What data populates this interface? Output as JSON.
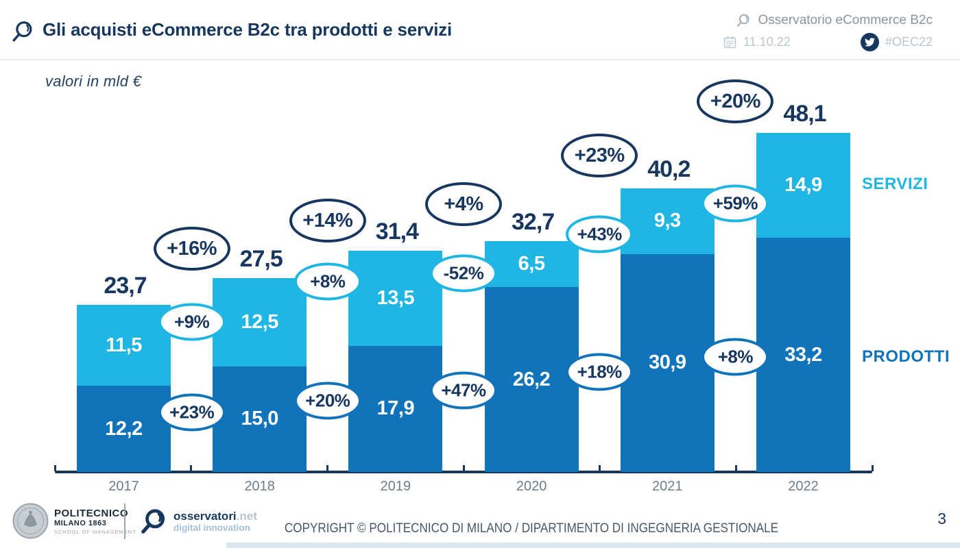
{
  "header": {
    "title": "Gli acquisti eCommerce B2c tra prodotti e servizi",
    "program": "Osservatorio eCommerce B2c",
    "date": "11.10.22",
    "hashtag": "#OEC22"
  },
  "chart_data": {
    "type": "bar",
    "stacked": true,
    "title": "Gli acquisti eCommerce B2c tra prodotti e servizi",
    "unit_note": "valori in mld €",
    "categories": [
      "2017",
      "2018",
      "2019",
      "2020",
      "2021",
      "2022"
    ],
    "series": [
      {
        "name": "PRODOTTI",
        "color": "#1173b9",
        "values": [
          12.2,
          15.0,
          17.9,
          26.2,
          30.9,
          33.2
        ],
        "value_labels": [
          "12,2",
          "15,0",
          "17,9",
          "26,2",
          "30,9",
          "33,2"
        ],
        "growth_labels": [
          "+23%",
          "+20%",
          "+47%",
          "+18%",
          "+8%"
        ]
      },
      {
        "name": "SERVIZI",
        "color": "#1fb6e4",
        "values": [
          11.5,
          12.5,
          13.5,
          6.5,
          9.3,
          14.9
        ],
        "value_labels": [
          "11,5",
          "12,5",
          "13,5",
          "6,5",
          "9,3",
          "14,9"
        ],
        "growth_labels": [
          "+9%",
          "+8%",
          "-52%",
          "+43%",
          "+59%"
        ]
      }
    ],
    "totals": [
      23.7,
      27.5,
      31.4,
      32.7,
      40.2,
      48.1
    ],
    "total_labels": [
      "23,7",
      "27,5",
      "31,4",
      "32,7",
      "40,2",
      "48,1"
    ],
    "total_growth_labels": [
      "+16%",
      "+14%",
      "+4%",
      "+23%",
      "+20%"
    ],
    "ylim": [
      0,
      50
    ],
    "grid": false,
    "legend_position": "right"
  },
  "colors": {
    "navy": "#17375e",
    "servizi": "#1fb6e4",
    "prodotti": "#1173b9"
  },
  "footer": {
    "polimi": {
      "name": "POLITECNICO",
      "sub": "MILANO 1863",
      "school": "SCHOOL OF MANAGEMENT"
    },
    "osservatori": {
      "brand": "osservatori",
      "tld": ".net",
      "tagline": "digital innovation"
    },
    "copyright": "COPYRIGHT © POLITECNICO DI MILANO / DIPARTIMENTO DI INGEGNERIA GESTIONALE",
    "page_number": "3"
  }
}
